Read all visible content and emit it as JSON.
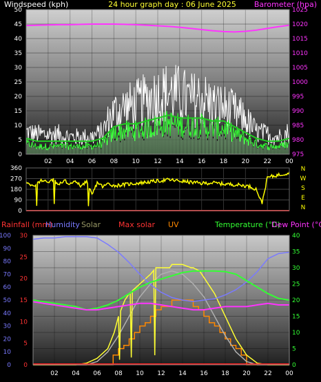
{
  "chart_data": [
    {
      "type": "line",
      "title": "24 hour graph day : 06 June 2025",
      "ylabel": "Windspeed (kph)",
      "y2label": "Barometer (hpa)",
      "x_ticks": [
        "02",
        "04",
        "06",
        "08",
        "10",
        "12",
        "14",
        "16",
        "18",
        "20",
        "22",
        "00"
      ],
      "ylim": [
        0,
        50
      ],
      "y_ticks": [
        "0",
        "5",
        "10",
        "15",
        "20",
        "25",
        "30",
        "35",
        "40",
        "45",
        "50"
      ],
      "y2lim": [
        975,
        1025
      ],
      "y2_ticks": [
        "975",
        "980",
        "985",
        "990",
        "995",
        "1000",
        "1005",
        "1010",
        "1015",
        "1020",
        "1025"
      ],
      "grid": true,
      "series": [
        {
          "name": "Barometer (hpa)",
          "color": "#ff33ff",
          "axis": "right",
          "x": [
            0,
            1,
            2,
            3,
            4,
            5,
            6,
            7,
            8,
            9,
            10,
            11,
            12,
            13,
            14,
            15,
            16,
            17,
            18,
            19,
            20,
            21,
            22,
            23,
            24
          ],
          "values": [
            1019.5,
            1019.6,
            1019.7,
            1019.8,
            1019.8,
            1019.9,
            1020.0,
            1020.0,
            1020.0,
            1019.9,
            1019.8,
            1019.6,
            1019.4,
            1019.2,
            1018.9,
            1018.5,
            1018.1,
            1017.7,
            1017.4,
            1017.3,
            1017.5,
            1017.9,
            1018.5,
            1019.1,
            1019.6
          ]
        },
        {
          "name": "Wind gust",
          "color": "#ffffff",
          "axis": "left",
          "x": [
            0,
            1,
            2,
            3,
            4,
            5,
            6,
            7,
            7.5,
            8,
            9,
            10,
            11,
            12,
            13,
            14,
            15,
            16,
            17,
            18,
            19,
            20,
            21,
            22,
            23,
            24
          ],
          "values": [
            9,
            8,
            8,
            8,
            7,
            7,
            7,
            9,
            14,
            17,
            19,
            20,
            22,
            24,
            25,
            24,
            22,
            23,
            20,
            19,
            17,
            14,
            9,
            8,
            7,
            9
          ]
        },
        {
          "name": "Wind speed",
          "color": "#33ff33",
          "axis": "left",
          "x": [
            0,
            1,
            2,
            3,
            4,
            5,
            6,
            7,
            7.5,
            8,
            9,
            10,
            11,
            12,
            13,
            14,
            15,
            16,
            17,
            18,
            19,
            20,
            21,
            22,
            23,
            24
          ],
          "values": [
            4,
            3,
            3,
            3,
            3,
            3,
            3,
            4,
            6,
            8,
            9,
            9,
            10,
            11,
            12,
            11,
            11,
            11,
            10,
            10,
            8,
            6,
            4,
            3,
            3,
            4
          ]
        }
      ]
    },
    {
      "type": "scatter",
      "title": "",
      "ylabel": "Wind direction",
      "x_ticks": [
        "02",
        "04",
        "06",
        "08",
        "10",
        "12",
        "14",
        "16",
        "18",
        "20",
        "22",
        "00"
      ],
      "ylim": [
        0,
        360
      ],
      "y_ticks": [
        "0",
        "90",
        "180",
        "270",
        "360"
      ],
      "compass": [
        "N",
        "W",
        "S",
        "E",
        "N"
      ],
      "grid": true,
      "series": [
        {
          "name": "Direction",
          "color": "#ffff00",
          "x": [
            0,
            0.5,
            1,
            1.5,
            2,
            2.5,
            3,
            3.5,
            4,
            4.5,
            5,
            5.5,
            6,
            6.5,
            7,
            7.5,
            8,
            9,
            10,
            11,
            12,
            13,
            14,
            15,
            16,
            17,
            18,
            19,
            20,
            20.5,
            21,
            21.5,
            22,
            23,
            24
          ],
          "values": [
            250,
            200,
            230,
            260,
            240,
            260,
            220,
            250,
            230,
            240,
            210,
            250,
            130,
            240,
            200,
            230,
            210,
            220,
            230,
            240,
            250,
            260,
            250,
            240,
            230,
            235,
            225,
            220,
            210,
            200,
            180,
            60,
            280,
            300,
            320
          ]
        }
      ]
    },
    {
      "type": "line",
      "title": "",
      "header_labels": [
        "Rainfall (mm)",
        "Humidity",
        "Solar",
        "Max solar",
        "UV",
        "Temperature (°C)",
        "Dew Point (°C)"
      ],
      "x_ticks": [
        "02",
        "04",
        "06",
        "08",
        "10",
        "12",
        "14",
        "16",
        "18",
        "20",
        "22",
        "00"
      ],
      "humidity_ticks": [
        "0",
        "10",
        "20",
        "30",
        "40",
        "50",
        "60",
        "70",
        "80",
        "90",
        "100"
      ],
      "rain_ticks": [
        "0",
        "5",
        "10",
        "15",
        "20",
        "25",
        "30"
      ],
      "temp_ticks": [
        "0",
        "5",
        "10",
        "15",
        "20",
        "25",
        "30",
        "35",
        "40"
      ],
      "humidity_lim": [
        0,
        100
      ],
      "rain_lim": [
        0,
        30
      ],
      "temp_lim": [
        0,
        40
      ],
      "grid": true,
      "series": [
        {
          "name": "Humidity",
          "color": "#7a7aff",
          "axis": "humidity",
          "x": [
            0,
            1,
            2,
            3,
            4,
            5,
            6,
            7,
            8,
            9,
            10,
            11,
            12,
            13,
            14,
            15,
            16,
            17,
            18,
            19,
            20,
            21,
            22,
            23,
            24
          ],
          "values": [
            97,
            98,
            98,
            99,
            99,
            99,
            98,
            93,
            87,
            79,
            70,
            62,
            56,
            52,
            50,
            49,
            50,
            51,
            54,
            58,
            64,
            72,
            82,
            86,
            87
          ]
        },
        {
          "name": "Temperature (°C)",
          "color": "#33ff33",
          "axis": "temp",
          "x": [
            0,
            1,
            2,
            3,
            4,
            5,
            6,
            7,
            8,
            9,
            10,
            11,
            12,
            13,
            14,
            15,
            16,
            17,
            18,
            19,
            20,
            21,
            22,
            23,
            24
          ],
          "values": [
            20,
            19.5,
            19,
            18.5,
            18,
            17,
            17.5,
            18.5,
            20,
            22,
            24,
            25.5,
            26.5,
            27.5,
            28.5,
            29,
            29,
            29,
            28.8,
            28,
            26,
            24,
            22,
            20.5,
            20
          ]
        },
        {
          "name": "Dew Point (°C)",
          "color": "#ff33ff",
          "axis": "temp",
          "x": [
            0,
            1,
            2,
            3,
            4,
            5,
            6,
            7,
            8,
            9,
            10,
            11,
            12,
            13,
            14,
            15,
            16,
            17,
            18,
            19,
            20,
            21,
            22,
            23,
            24
          ],
          "values": [
            19.5,
            19,
            18.5,
            18,
            17.5,
            17,
            17,
            17.5,
            18,
            18.5,
            19,
            19,
            18.5,
            18,
            17.5,
            17,
            17,
            17.5,
            18,
            18,
            18,
            18.5,
            19,
            18.5,
            18.5
          ]
        },
        {
          "name": "Solar",
          "color": "#ffff33",
          "axis": "temp",
          "x": [
            0,
            4,
            5,
            6,
            7,
            7.6,
            8,
            8.6,
            9,
            10,
            11,
            11.5,
            12,
            12.8,
            13,
            13.6,
            14,
            14.8,
            15,
            15.6,
            16,
            17,
            18,
            19,
            20,
            21,
            22,
            24
          ],
          "values": [
            0,
            0,
            0.5,
            2,
            5,
            10,
            15,
            20,
            22,
            25,
            28,
            30,
            30,
            30,
            31,
            31,
            31,
            30,
            30,
            29,
            27,
            22,
            15,
            8,
            3,
            0.5,
            0,
            0
          ]
        },
        {
          "name": "Max solar",
          "color": "#b0b0b0",
          "axis": "temp",
          "x": [
            0,
            5,
            6,
            7,
            8,
            9,
            10,
            11,
            12,
            13,
            14,
            15,
            16,
            17,
            18,
            19,
            20,
            21,
            24
          ],
          "values": [
            0,
            0,
            1,
            4,
            9,
            15,
            21,
            25,
            28,
            29,
            28,
            25,
            21,
            15,
            9,
            4,
            1,
            0,
            0
          ]
        },
        {
          "name": "UV",
          "color": "#ff8800",
          "axis": "temp",
          "x": [
            0,
            7,
            7.5,
            8,
            8.5,
            9,
            9.5,
            10,
            10.5,
            11,
            11.5,
            12,
            12.5,
            13,
            13.5,
            14,
            14.5,
            15,
            15.5,
            16,
            16.5,
            17,
            17.5,
            18,
            18.5,
            19,
            19.5,
            20,
            24
          ],
          "values": [
            0,
            0,
            3,
            5,
            6,
            8,
            10,
            12,
            13,
            15,
            17,
            18,
            18,
            20,
            20,
            20,
            20,
            18,
            17,
            15,
            13,
            12,
            10,
            8,
            6,
            5,
            3,
            0,
            0
          ]
        },
        {
          "name": "Rainfall (mm)",
          "color": "#ff2222",
          "axis": "rain",
          "x": [
            0,
            24
          ],
          "values": [
            0,
            0
          ]
        }
      ]
    }
  ]
}
